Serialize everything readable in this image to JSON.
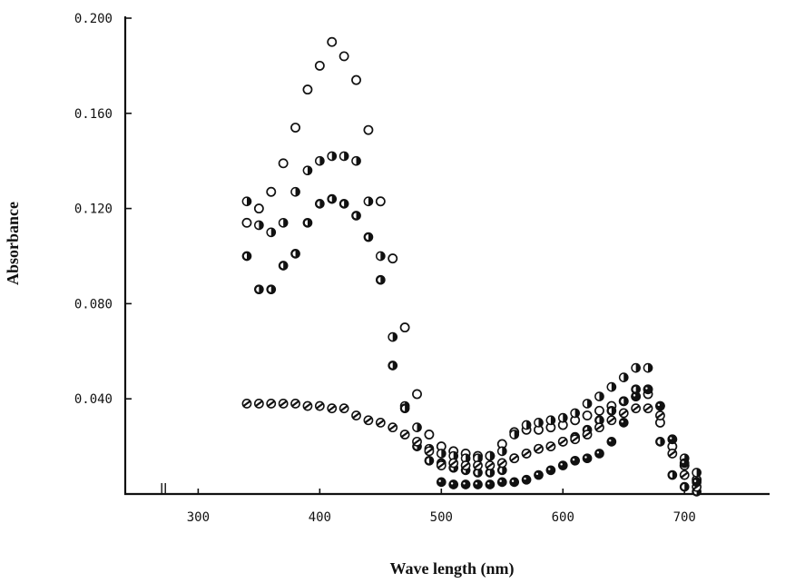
{
  "chart_data": {
    "type": "scatter",
    "title": "",
    "xlabel": "Wave length (nm)",
    "ylabel": "Absorbance",
    "xlim": [
      240,
      770
    ],
    "ylim": [
      0,
      0.2
    ],
    "x_ticks": [
      {
        "value": 300,
        "label": "300"
      },
      {
        "value": 400,
        "label": "400"
      },
      {
        "value": 500,
        "label": "500"
      },
      {
        "value": 600,
        "label": "600"
      },
      {
        "value": 700,
        "label": "700"
      }
    ],
    "y_ticks": [
      {
        "value": 0.04,
        "label": "0.040"
      },
      {
        "value": 0.08,
        "label": "0.080"
      },
      {
        "value": 0.12,
        "label": "0.120"
      },
      {
        "value": 0.16,
        "label": "0.160"
      },
      {
        "value": 0.2,
        "label": "0.200"
      }
    ],
    "x_minor_ticks": [
      270,
      273
    ],
    "grid": false,
    "legend": "none",
    "series": [
      {
        "marker": "open-circle",
        "color": "#111111",
        "x": [
          340,
          350,
          360,
          370,
          380,
          390,
          400,
          410,
          420,
          430,
          440,
          450,
          460,
          470,
          480,
          490,
          500,
          510,
          520,
          530,
          540,
          550,
          560,
          570,
          580,
          590,
          600,
          610,
          620,
          630,
          640,
          650,
          660,
          670,
          680,
          690,
          700,
          710
        ],
        "y": [
          0.114,
          0.12,
          0.127,
          0.139,
          0.154,
          0.17,
          0.18,
          0.19,
          0.184,
          0.174,
          0.153,
          0.123,
          0.099,
          0.07,
          0.042,
          0.025,
          0.02,
          0.018,
          0.017,
          0.016,
          0.016,
          0.021,
          0.026,
          0.027,
          0.027,
          0.028,
          0.029,
          0.031,
          0.033,
          0.035,
          0.037,
          0.039,
          0.041,
          0.042,
          0.03,
          0.02,
          0.012,
          0.006
        ]
      },
      {
        "marker": "half-filled-circle",
        "color": "#111111",
        "x": [
          340,
          350,
          360,
          370,
          380,
          390,
          400,
          410,
          420,
          430,
          440,
          450,
          460,
          470,
          480,
          490,
          500,
          510,
          520,
          530,
          540,
          550,
          560,
          570,
          580,
          590,
          600,
          610,
          620,
          630,
          640,
          650,
          660,
          670,
          680,
          690,
          700,
          710
        ],
        "y": [
          0.123,
          0.113,
          0.11,
          0.114,
          0.127,
          0.136,
          0.14,
          0.142,
          0.142,
          0.14,
          0.123,
          0.1,
          0.066,
          0.037,
          0.028,
          0.019,
          0.017,
          0.016,
          0.015,
          0.015,
          0.016,
          0.018,
          0.025,
          0.029,
          0.03,
          0.031,
          0.032,
          0.034,
          0.038,
          0.041,
          0.045,
          0.049,
          0.053,
          0.053,
          0.037,
          0.023,
          0.015,
          0.009
        ]
      },
      {
        "marker": "dark-half-circle",
        "color": "#111111",
        "x": [
          340,
          350,
          360,
          370,
          380,
          390,
          400,
          410,
          420,
          430,
          440,
          450,
          460,
          470,
          480,
          490,
          500,
          510,
          520,
          530,
          540,
          550,
          560,
          570,
          580,
          590,
          600,
          610,
          620,
          630,
          640,
          650,
          660,
          670,
          680,
          690,
          700,
          710
        ],
        "y": [
          0.1,
          0.086,
          0.086,
          0.096,
          0.101,
          0.114,
          0.122,
          0.124,
          0.122,
          0.117,
          0.108,
          0.09,
          0.054,
          0.036,
          0.02,
          0.014,
          0.013,
          0.011,
          0.01,
          0.009,
          0.009,
          0.01,
          0.015,
          0.017,
          0.019,
          0.02,
          0.022,
          0.024,
          0.027,
          0.031,
          0.035,
          0.039,
          0.044,
          0.044,
          0.022,
          0.008,
          0.003,
          0.001
        ]
      },
      {
        "marker": "barred-circle",
        "color": "#111111",
        "x": [
          340,
          350,
          360,
          370,
          380,
          390,
          400,
          410,
          420,
          430,
          440,
          450,
          460,
          470,
          480,
          490,
          500,
          510,
          520,
          530,
          540,
          550,
          560,
          570,
          580,
          590,
          600,
          610,
          620,
          630,
          640,
          650,
          660,
          670,
          680,
          690,
          700,
          710
        ],
        "y": [
          0.038,
          0.038,
          0.038,
          0.038,
          0.038,
          0.037,
          0.037,
          0.036,
          0.036,
          0.033,
          0.031,
          0.03,
          0.028,
          0.025,
          0.022,
          0.018,
          0.012,
          0.013,
          0.012,
          0.012,
          0.012,
          0.013,
          0.015,
          0.017,
          0.019,
          0.02,
          0.022,
          0.023,
          0.025,
          0.028,
          0.031,
          0.034,
          0.036,
          0.036,
          0.033,
          0.017,
          0.008,
          0.003
        ]
      },
      {
        "marker": "filled-circle",
        "color": "#111111",
        "x": [
          500,
          510,
          520,
          530,
          540,
          550,
          560,
          570,
          580,
          590,
          600,
          610,
          620,
          630,
          640,
          650,
          660,
          670,
          680,
          690,
          700,
          710
        ],
        "y": [
          0.005,
          0.004,
          0.004,
          0.004,
          0.004,
          0.005,
          0.005,
          0.006,
          0.008,
          0.01,
          0.012,
          0.014,
          0.015,
          0.017,
          0.022,
          0.03,
          0.041,
          0.044,
          0.037,
          0.023,
          0.013,
          0.005
        ]
      }
    ]
  }
}
